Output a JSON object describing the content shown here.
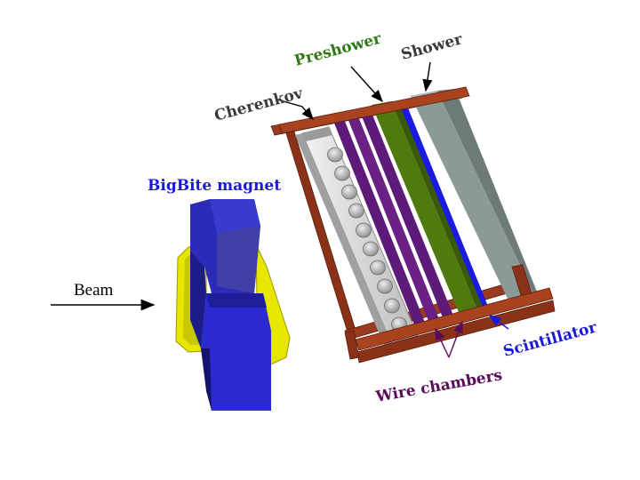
{
  "labels": {
    "beam": "Beam",
    "magnet": "BigBite magnet",
    "cherenkov": "Cherenkov",
    "preshower": "Preshower",
    "shower": "Shower",
    "scintillator": "Scintillator",
    "wire_chambers": "Wire chambers"
  },
  "colors": {
    "magnet_label": "#1a1ad6",
    "cherenkov_label": "#3a3a3a",
    "preshower_label": "#2f7a12",
    "shower_label": "#3a3a3a",
    "scintillator_label": "#1a1ad6",
    "wire_chambers_label": "#5a0a5a",
    "frame": "#9a3a1e",
    "magnet_coil": "#e6e600",
    "magnet_yoke": "#2b2bb8",
    "cherenkov_body": "#d8d8d8",
    "wire_chamber": "#5e1a78",
    "preshower": "#4f7a0e",
    "scintillator": "#1a1ae0",
    "shower": "#8a9a96"
  },
  "pmt_count": 10
}
